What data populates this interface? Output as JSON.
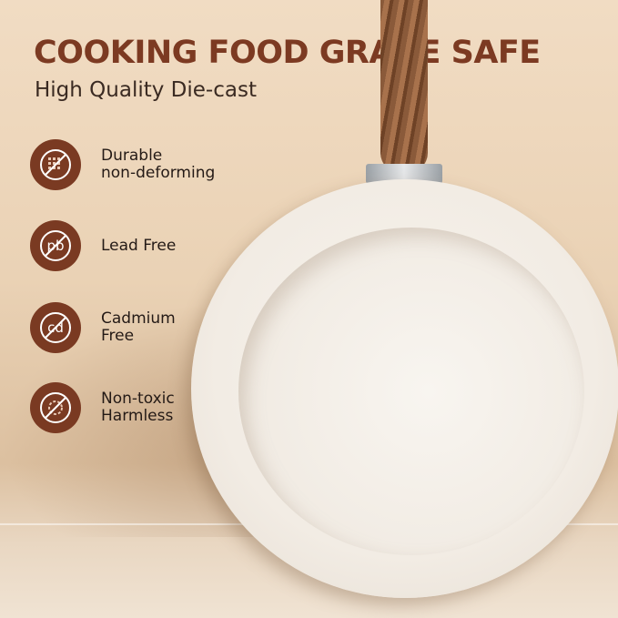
{
  "header": {
    "title": "COOKING FOOD GRADE SAFE",
    "subtitle": "High Quality Die-cast"
  },
  "features": [
    {
      "icon": "no-deform-icon",
      "label": "Durable\nnon-deforming"
    },
    {
      "icon": "no-lead-pb-icon",
      "label": "Lead Free"
    },
    {
      "icon": "no-cadmium-cd-icon",
      "label": "Cadmium\nFree"
    },
    {
      "icon": "non-toxic-icon",
      "label": "Non-toxic\nHarmless"
    }
  ],
  "icon_text": {
    "pb": "pb",
    "cd": "cd"
  },
  "colors": {
    "accent": "#7a3a22",
    "background": "#ead2b5"
  }
}
